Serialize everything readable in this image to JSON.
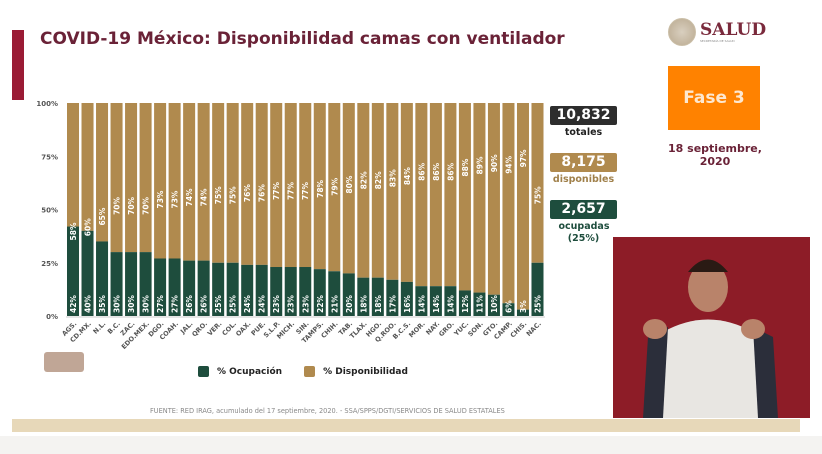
{
  "title": "COVID-19 México: Disponibilidad camas con ventilador",
  "logo": {
    "name": "SALUD",
    "subtitle": "SECRETARÍA DE SALUD"
  },
  "phase": "Fase 3",
  "date": "18 septiembre, 2020",
  "stats": {
    "total": "10,832",
    "total_label": "totales",
    "available": "8,175",
    "available_label": "disponibles",
    "occupied": "2,657",
    "occupied_label": "ocupadas (25%)"
  },
  "colors": {
    "occupied": "#1e4d3d",
    "available": "#b08a4e",
    "title": "#6a2237",
    "phase": "#ff8200"
  },
  "footer": "FUENTE: RED IRAG, acumulado del 17 septiembre, 2020. -  SSA/SPPS/DGTI/SERVICIOS DE SALUD ESTATALES",
  "chart_data": {
    "type": "bar",
    "stacked": true,
    "categories": [
      "AGS.",
      "CD.MX.",
      "N.L.",
      "B.C.",
      "ZAC.",
      "EDO.MEX.",
      "DGO.",
      "COAH.",
      "JAL.",
      "QRO.",
      "VER.",
      "COL.",
      "OAX.",
      "PUE.",
      "S.L.P.",
      "MICH.",
      "SIN.",
      "TAMPS.",
      "CHIH.",
      "TAB.",
      "TLAX.",
      "HGO.",
      "Q.ROO.",
      "B.C.S.",
      "MOR.",
      "NAY.",
      "GRO.",
      "YUC.",
      "SON.",
      "GTO.",
      "CAMP.",
      "CHIS.",
      "NAC."
    ],
    "series": [
      {
        "name": "% Ocupación",
        "values": [
          42,
          40,
          35,
          30,
          30,
          30,
          27,
          27,
          26,
          26,
          25,
          25,
          24,
          24,
          23,
          23,
          23,
          22,
          21,
          20,
          18,
          18,
          17,
          16,
          14,
          14,
          14,
          12,
          11,
          10,
          6,
          3,
          25
        ]
      },
      {
        "name": "% Disponibilidad",
        "values": [
          58,
          60,
          65,
          70,
          70,
          70,
          73,
          73,
          74,
          74,
          75,
          75,
          76,
          76,
          77,
          77,
          77,
          78,
          79,
          80,
          82,
          82,
          83,
          84,
          86,
          86,
          86,
          88,
          89,
          90,
          94,
          97,
          75
        ]
      }
    ],
    "yticks": [
      "0%",
      "25%",
      "50%",
      "75%",
      "100%"
    ],
    "ylim": [
      0,
      100
    ],
    "legend": "bottom",
    "grid": false
  }
}
